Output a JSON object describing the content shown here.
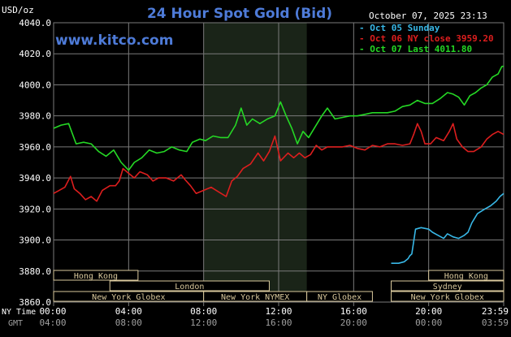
{
  "header": {
    "title": "24 Hour Spot Gold (Bid)",
    "units": "USD/oz",
    "timestamp": "October 07, 2025 23:13",
    "watermark": "www.kitco.com"
  },
  "colors": {
    "background": "#000000",
    "title": "#4e7bd8",
    "grid": "#7a7a7a",
    "axis_text": "#ffffff",
    "footer_text": "#a0a0a0",
    "shading": "#1a2418",
    "session_box": "#d9c89c",
    "oct05": "#38b7e6",
    "oct06": "#dd1e1e",
    "oct07": "#25d825"
  },
  "chart_data": {
    "type": "line",
    "title": "24 Hour Spot Gold (Bid)",
    "ylabel": "USD/oz",
    "ylim": [
      3860,
      4040
    ],
    "yticks": [
      "4040.0",
      "4020.0",
      "4000.0",
      "3980.0",
      "3960.0",
      "3940.0",
      "3920.0",
      "3900.0",
      "3880.0",
      "3860.0"
    ],
    "xlim": [
      0,
      24
    ],
    "xticks_ny": [
      "00:00",
      "04:00",
      "08:00",
      "12:00",
      "16:00",
      "20:00",
      "23:59"
    ],
    "xticks_gmt": [
      "04:00",
      "08:00",
      "12:00",
      "16:00",
      "20:00",
      "00:00",
      "03:59"
    ],
    "xlabel_ny": "NY Time",
    "xlabel_gmt": "GMT",
    "grid": true,
    "legend_position": "top-right",
    "series": [
      {
        "name": "Oct 05 Sunday",
        "legend": "Oct 05 Sunday",
        "color": "#38b7e6",
        "points": [
          [
            18.0,
            3885
          ],
          [
            18.4,
            3885
          ],
          [
            18.7,
            3886
          ],
          [
            18.9,
            3888
          ],
          [
            19.0,
            3890
          ],
          [
            19.1,
            3891
          ],
          [
            19.3,
            3907
          ],
          [
            19.6,
            3908
          ],
          [
            20.0,
            3907
          ],
          [
            20.2,
            3905
          ],
          [
            20.5,
            3903
          ],
          [
            20.8,
            3901
          ],
          [
            21.0,
            3904
          ],
          [
            21.3,
            3902
          ],
          [
            21.6,
            3901
          ],
          [
            21.9,
            3903
          ],
          [
            22.1,
            3905
          ],
          [
            22.3,
            3911
          ],
          [
            22.6,
            3917
          ],
          [
            23.0,
            3920
          ],
          [
            23.3,
            3922
          ],
          [
            23.6,
            3925
          ],
          [
            23.8,
            3928
          ],
          [
            24.0,
            3930
          ]
        ]
      },
      {
        "name": "Oct 06 NY close",
        "legend": "Oct 06 NY close 3959.20",
        "color": "#dd1e1e",
        "points": [
          [
            0.0,
            3930
          ],
          [
            0.3,
            3932
          ],
          [
            0.6,
            3934
          ],
          [
            0.9,
            3941
          ],
          [
            1.1,
            3933
          ],
          [
            1.4,
            3930
          ],
          [
            1.7,
            3926
          ],
          [
            2.0,
            3928
          ],
          [
            2.3,
            3925
          ],
          [
            2.6,
            3932
          ],
          [
            3.0,
            3935
          ],
          [
            3.3,
            3935
          ],
          [
            3.5,
            3938
          ],
          [
            3.7,
            3946
          ],
          [
            4.0,
            3943
          ],
          [
            4.3,
            3940
          ],
          [
            4.6,
            3944
          ],
          [
            5.0,
            3942
          ],
          [
            5.3,
            3938
          ],
          [
            5.6,
            3940
          ],
          [
            6.0,
            3940
          ],
          [
            6.4,
            3938
          ],
          [
            6.8,
            3942
          ],
          [
            7.0,
            3939
          ],
          [
            7.3,
            3935
          ],
          [
            7.6,
            3930
          ],
          [
            8.0,
            3932
          ],
          [
            8.4,
            3934
          ],
          [
            8.8,
            3931
          ],
          [
            9.2,
            3928
          ],
          [
            9.5,
            3938
          ],
          [
            9.8,
            3941
          ],
          [
            10.1,
            3946
          ],
          [
            10.5,
            3949
          ],
          [
            10.9,
            3956
          ],
          [
            11.2,
            3951
          ],
          [
            11.5,
            3957
          ],
          [
            11.8,
            3967
          ],
          [
            12.1,
            3951
          ],
          [
            12.5,
            3956
          ],
          [
            12.8,
            3953
          ],
          [
            13.1,
            3956
          ],
          [
            13.4,
            3953
          ],
          [
            13.7,
            3955
          ],
          [
            14.0,
            3961
          ],
          [
            14.3,
            3958
          ],
          [
            14.6,
            3960
          ],
          [
            15.0,
            3960
          ],
          [
            15.4,
            3960
          ],
          [
            15.8,
            3961
          ],
          [
            16.2,
            3959
          ],
          [
            16.6,
            3958
          ],
          [
            17.0,
            3961
          ],
          [
            17.4,
            3960
          ],
          [
            17.8,
            3962
          ],
          [
            18.2,
            3962
          ],
          [
            18.6,
            3961
          ],
          [
            19.0,
            3962
          ],
          [
            19.2,
            3968
          ],
          [
            19.4,
            3975
          ],
          [
            19.6,
            3970
          ],
          [
            19.8,
            3962
          ],
          [
            20.1,
            3962
          ],
          [
            20.4,
            3966
          ],
          [
            20.8,
            3964
          ],
          [
            21.1,
            3970
          ],
          [
            21.3,
            3975
          ],
          [
            21.5,
            3965
          ],
          [
            21.8,
            3960
          ],
          [
            22.1,
            3957
          ],
          [
            22.4,
            3957
          ],
          [
            22.8,
            3960
          ],
          [
            23.1,
            3965
          ],
          [
            23.4,
            3968
          ],
          [
            23.7,
            3970
          ],
          [
            24.0,
            3968
          ]
        ]
      },
      {
        "name": "Oct 07 Last",
        "legend": "Oct 07 Last 4011.80",
        "color": "#25d825",
        "points": [
          [
            0.0,
            3972
          ],
          [
            0.4,
            3974
          ],
          [
            0.8,
            3975
          ],
          [
            1.2,
            3962
          ],
          [
            1.6,
            3963
          ],
          [
            2.0,
            3962
          ],
          [
            2.4,
            3957
          ],
          [
            2.8,
            3954
          ],
          [
            3.2,
            3958
          ],
          [
            3.6,
            3950
          ],
          [
            4.0,
            3945
          ],
          [
            4.3,
            3950
          ],
          [
            4.7,
            3953
          ],
          [
            5.1,
            3958
          ],
          [
            5.5,
            3956
          ],
          [
            5.9,
            3957
          ],
          [
            6.3,
            3960
          ],
          [
            6.7,
            3958
          ],
          [
            7.1,
            3957
          ],
          [
            7.4,
            3963
          ],
          [
            7.8,
            3965
          ],
          [
            8.1,
            3964
          ],
          [
            8.5,
            3967
          ],
          [
            8.9,
            3966
          ],
          [
            9.3,
            3966
          ],
          [
            9.7,
            3974
          ],
          [
            10.0,
            3985
          ],
          [
            10.3,
            3974
          ],
          [
            10.6,
            3978
          ],
          [
            11.0,
            3975
          ],
          [
            11.4,
            3978
          ],
          [
            11.8,
            3980
          ],
          [
            12.1,
            3989
          ],
          [
            12.4,
            3980
          ],
          [
            12.7,
            3972
          ],
          [
            13.0,
            3962
          ],
          [
            13.3,
            3970
          ],
          [
            13.6,
            3966
          ],
          [
            14.0,
            3974
          ],
          [
            14.3,
            3980
          ],
          [
            14.6,
            3985
          ],
          [
            15.0,
            3978
          ],
          [
            15.4,
            3979
          ],
          [
            15.8,
            3980
          ],
          [
            16.2,
            3980
          ],
          [
            16.6,
            3981
          ],
          [
            17.0,
            3982
          ],
          [
            17.4,
            3982
          ],
          [
            17.8,
            3982
          ],
          [
            18.2,
            3983
          ],
          [
            18.6,
            3986
          ],
          [
            19.0,
            3987
          ],
          [
            19.4,
            3990
          ],
          [
            19.8,
            3988
          ],
          [
            20.2,
            3988
          ],
          [
            20.6,
            3991
          ],
          [
            21.0,
            3995
          ],
          [
            21.3,
            3994
          ],
          [
            21.6,
            3992
          ],
          [
            21.9,
            3987
          ],
          [
            22.2,
            3993
          ],
          [
            22.5,
            3995
          ],
          [
            22.8,
            3998
          ],
          [
            23.1,
            4000
          ],
          [
            23.4,
            4005
          ],
          [
            23.7,
            4007
          ],
          [
            23.9,
            4011.8
          ],
          [
            24.0,
            4012
          ]
        ]
      }
    ]
  },
  "sessions": [
    {
      "label": "Hong Kong",
      "start": 0.0,
      "end": 4.5,
      "row": 0
    },
    {
      "label": "London",
      "start": 3.0,
      "end": 11.5,
      "row": 1
    },
    {
      "label": "New York Globex",
      "start": 0.0,
      "end": 8.0,
      "row": 2
    },
    {
      "label": "New York NYMEX",
      "start": 8.0,
      "end": 13.5,
      "row": 2
    },
    {
      "label": "NY Globex",
      "start": 13.5,
      "end": 17.0,
      "row": 2
    },
    {
      "label": "Hong Kong",
      "start": 20.0,
      "end": 24.0,
      "row": 0
    },
    {
      "label": "Sydney",
      "start": 18.0,
      "end": 24.0,
      "row": 1
    },
    {
      "label": "New York Globex",
      "start": 18.0,
      "end": 24.0,
      "row": 2
    }
  ],
  "shaded_region": {
    "start": 8.0,
    "end": 13.5
  }
}
